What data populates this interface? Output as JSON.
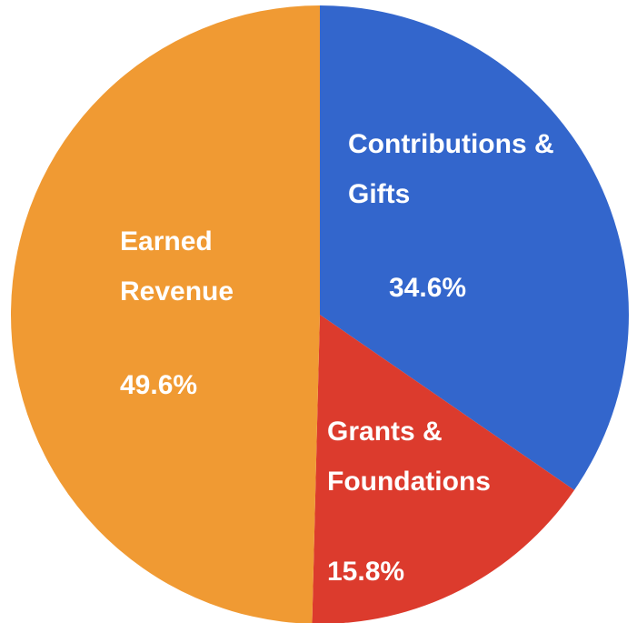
{
  "chart_data": {
    "type": "pie",
    "categories": [
      "Contributions & Gifts",
      "Grants & Foundations",
      "Earned Revenue"
    ],
    "values": [
      34.6,
      15.8,
      49.6
    ],
    "value_labels": [
      "34.6%",
      "15.8%",
      "49.6%"
    ],
    "colors": [
      "#3366cc",
      "#dc3b2d",
      "#f09a33"
    ],
    "start_angle": 0,
    "direction": "clockwise"
  }
}
